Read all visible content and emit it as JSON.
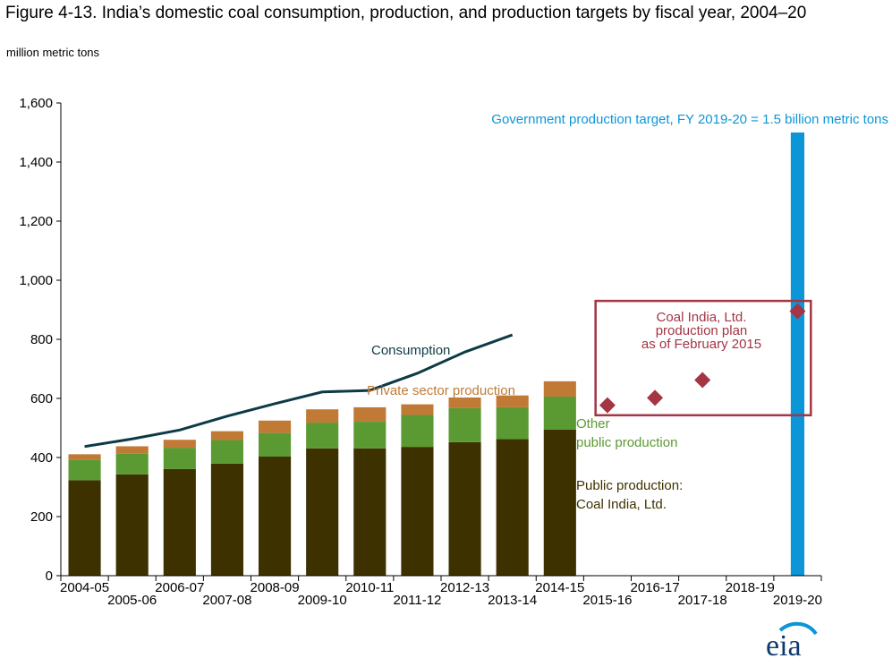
{
  "title": "Figure 4-13. India’s domestic coal consumption, production, and production targets by fiscal year, 2004–20",
  "units": "million metric tons",
  "colors": {
    "coal_india": "#3d3100",
    "other_public": "#5b9a33",
    "private": "#c07a36",
    "consumption": "#0d3b45",
    "target": "#0d96d7",
    "plan": "#a33545",
    "text_public": "#3d3100",
    "text_other": "#5b9a33",
    "text_private": "#c07a36"
  },
  "logo_text": "eia",
  "chart_data": {
    "type": "bar",
    "stacked": true,
    "categories": [
      "2004-05",
      "2005-06",
      "2006-07",
      "2007-08",
      "2008-09",
      "2009-10",
      "2010-11",
      "2011-12",
      "2012-13",
      "2013-14",
      "2014-15",
      "2015-16",
      "2016-17",
      "2017-18",
      "2018-19",
      "2019-20"
    ],
    "ylim": [
      0,
      1600
    ],
    "yticks": [
      0,
      200,
      400,
      600,
      800,
      1000,
      1200,
      1400,
      1600
    ],
    "ytick_labels": [
      "0",
      "200",
      "400",
      "600",
      "800",
      "1,000",
      "1,200",
      "1,400",
      "1,600"
    ],
    "grid": false,
    "series": [
      {
        "key": "coal_india",
        "values": [
          323,
          343,
          361,
          379,
          403,
          431,
          431,
          436,
          452,
          462,
          494,
          null,
          null,
          null,
          null,
          null
        ]
      },
      {
        "key": "other_public",
        "values": [
          70,
          70,
          72,
          80,
          80,
          87,
          90,
          108,
          115,
          108,
          112,
          null,
          null,
          null,
          null,
          null
        ]
      },
      {
        "key": "private",
        "values": [
          18,
          25,
          27,
          30,
          42,
          45,
          49,
          36,
          36,
          40,
          52,
          null,
          null,
          null,
          null,
          null
        ]
      }
    ],
    "consumption": {
      "values": [
        437,
        463,
        493,
        540,
        582,
        622,
        627,
        685,
        757,
        815,
        null,
        null,
        null,
        null,
        null,
        null
      ]
    },
    "plan": {
      "values": [
        null,
        null,
        null,
        null,
        null,
        null,
        null,
        null,
        null,
        null,
        null,
        577,
        602,
        662,
        null,
        895
      ]
    },
    "target": {
      "category": "2019-20",
      "value": 1500
    },
    "annotations": {
      "target": "Government production target, FY 2019-20 = 1.5 billion metric tons",
      "plan": [
        "Coal India, Ltd.",
        "production plan",
        "as of February 2015"
      ],
      "consumption": "Consumption",
      "private": "Private sector production",
      "other_public": [
        "Other",
        "public production"
      ],
      "coal_india": [
        "Public production:",
        "Coal India, Ltd."
      ]
    }
  }
}
